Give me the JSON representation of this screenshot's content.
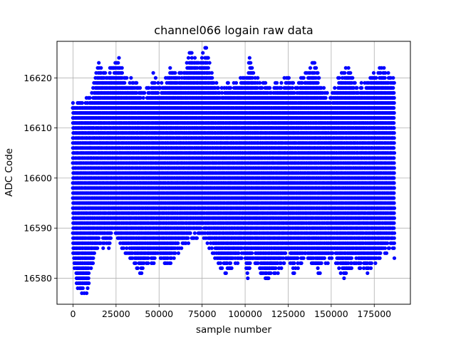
{
  "chart_data": {
    "type": "scatter",
    "title": "channel066 logain raw data",
    "xlabel": "sample number",
    "ylabel": "ADC Code",
    "xlim": [
      -9300,
      196000
    ],
    "ylim": [
      16574.8,
      16627.3
    ],
    "xticks": [
      0,
      25000,
      50000,
      75000,
      100000,
      125000,
      150000,
      175000
    ],
    "xtick_labels": [
      "0",
      "25000",
      "50000",
      "75000",
      "100000",
      "125000",
      "150000",
      "175000"
    ],
    "yticks": [
      16580,
      16590,
      16600,
      16610,
      16620
    ],
    "ytick_labels": [
      "16580",
      "16590",
      "16600",
      "16610",
      "16620"
    ],
    "grid": true,
    "marker_color": "#0000ff",
    "x_range": [
      0,
      187000
    ],
    "series": [
      {
        "upper_envelope": [
          [
            0,
            16615
          ],
          [
            5000,
            16615
          ],
          [
            10000,
            16616
          ],
          [
            13000,
            16620
          ],
          [
            15000,
            16623
          ],
          [
            20000,
            16621
          ],
          [
            25000,
            16623
          ],
          [
            27000,
            16624
          ],
          [
            30000,
            16620
          ],
          [
            35000,
            16620
          ],
          [
            40000,
            16617
          ],
          [
            45000,
            16618
          ],
          [
            47000,
            16621
          ],
          [
            50000,
            16618
          ],
          [
            55000,
            16620
          ],
          [
            57000,
            16622
          ],
          [
            60000,
            16620
          ],
          [
            65000,
            16622
          ],
          [
            68000,
            16625
          ],
          [
            72000,
            16623
          ],
          [
            77000,
            16626
          ],
          [
            80000,
            16622
          ],
          [
            85000,
            16617
          ],
          [
            90000,
            16619
          ],
          [
            95000,
            16619
          ],
          [
            100000,
            16620
          ],
          [
            103000,
            16624
          ],
          [
            105000,
            16620
          ],
          [
            110000,
            16619
          ],
          [
            115000,
            16618
          ],
          [
            120000,
            16619
          ],
          [
            125000,
            16620
          ],
          [
            130000,
            16618
          ],
          [
            135000,
            16621
          ],
          [
            140000,
            16623
          ],
          [
            145000,
            16618
          ],
          [
            150000,
            16616
          ],
          [
            155000,
            16621
          ],
          [
            160000,
            16622
          ],
          [
            165000,
            16618
          ],
          [
            170000,
            16619
          ],
          [
            175000,
            16621
          ],
          [
            180000,
            16622
          ],
          [
            185000,
            16620
          ],
          [
            187000,
            16619
          ]
        ],
        "lower_envelope": [
          [
            0,
            16584
          ],
          [
            2500,
            16578
          ],
          [
            5000,
            16577
          ],
          [
            8000,
            16577
          ],
          [
            10000,
            16581
          ],
          [
            15000,
            16587
          ],
          [
            20000,
            16586
          ],
          [
            25000,
            16589
          ],
          [
            30000,
            16585
          ],
          [
            35000,
            16584
          ],
          [
            39000,
            16581
          ],
          [
            45000,
            16583
          ],
          [
            50000,
            16584
          ],
          [
            55000,
            16582
          ],
          [
            60000,
            16585
          ],
          [
            65000,
            16587
          ],
          [
            70000,
            16588
          ],
          [
            75000,
            16589
          ],
          [
            80000,
            16586
          ],
          [
            85000,
            16583
          ],
          [
            88000,
            16581
          ],
          [
            95000,
            16583
          ],
          [
            100000,
            16585
          ],
          [
            101000,
            16579
          ],
          [
            105000,
            16584
          ],
          [
            110000,
            16581
          ],
          [
            113000,
            16580
          ],
          [
            117000,
            16580
          ],
          [
            120000,
            16582
          ],
          [
            125000,
            16584
          ],
          [
            128000,
            16581
          ],
          [
            132000,
            16583
          ],
          [
            135000,
            16584
          ],
          [
            140000,
            16583
          ],
          [
            143000,
            16581
          ],
          [
            148000,
            16583
          ],
          [
            152000,
            16584
          ],
          [
            157000,
            16580
          ],
          [
            160000,
            16582
          ],
          [
            165000,
            16583
          ],
          [
            170000,
            16581
          ],
          [
            175000,
            16583
          ],
          [
            180000,
            16585
          ],
          [
            185000,
            16586
          ],
          [
            187000,
            16584
          ]
        ]
      }
    ]
  }
}
